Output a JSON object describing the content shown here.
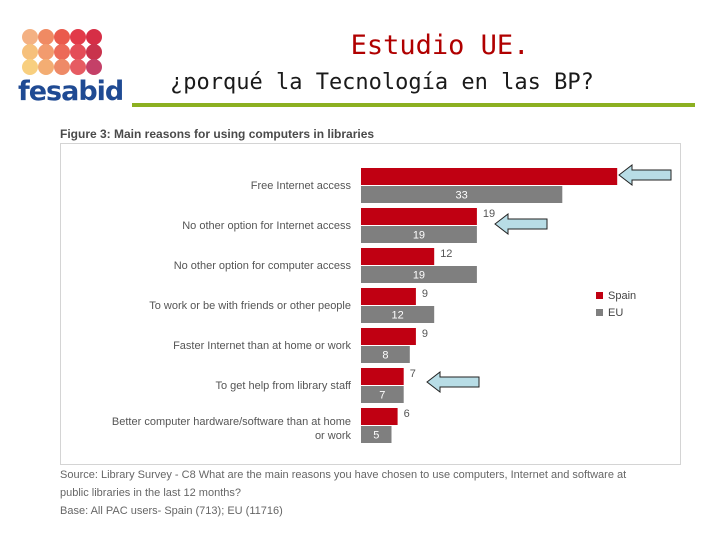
{
  "logo": {
    "text": "fesabid"
  },
  "slide": {
    "title": "Estudio UE.",
    "subtitle": "¿porqué la Tecnología en las BP?"
  },
  "figure": {
    "title": "Figure 3: Main reasons for using computers in libraries",
    "source": "Source: Library Survey - C8 What are the main reasons you have chosen to use computers, Internet and software at",
    "source_cont": "public libraries in the last 12 months?",
    "base": "Base: All PAC users- Spain (713); EU (11716)"
  },
  "colors": {
    "spain": "#c00012",
    "eu": "#7f7f7f",
    "arrow_fill": "#b8dde6",
    "accent_rule": "#8cb021"
  },
  "chart_data": {
    "type": "bar",
    "orientation": "horizontal",
    "title": "Figure 3: Main reasons for using computers in libraries",
    "categories": [
      "Free Internet access",
      "No other option for Internet access",
      "No other option for computer access",
      "To work or be with friends or other people",
      "Faster Internet than at home or work",
      "To get help from library staff",
      "Better computer hardware/software than at home or work"
    ],
    "series": [
      {
        "name": "Spain",
        "values": [
          42,
          19,
          12,
          9,
          9,
          7,
          6
        ]
      },
      {
        "name": "EU",
        "values": [
          33,
          19,
          19,
          12,
          8,
          7,
          5
        ]
      }
    ],
    "xlim": [
      0,
      50
    ],
    "grid": false,
    "legend": "right",
    "highlighted_categories": [
      "Free Internet access",
      "No other option for Internet access",
      "To get help from library staff"
    ]
  }
}
